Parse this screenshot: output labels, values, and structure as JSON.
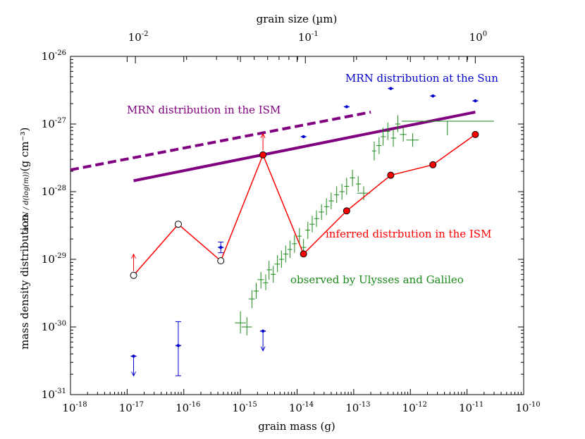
{
  "chart_data": {
    "type": "scatter",
    "xlabel": "grain mass (g)",
    "top_xlabel": "grain size (µm)",
    "ylabel": "mass density distribution",
    "ylabel_fraction": "m dN / d(log(m))",
    "ylabel_units": "(g cm⁻³)",
    "x_scale": "log",
    "y_scale": "log",
    "xlim": [
      1e-18,
      1e-10
    ],
    "ylim": [
      1e-31,
      1e-26
    ],
    "x_ticks": [
      {
        "value": 1e-18,
        "base": "10",
        "exp": "-18"
      },
      {
        "value": 1e-17,
        "base": "10",
        "exp": "-17"
      },
      {
        "value": 1e-16,
        "base": "10",
        "exp": "-16"
      },
      {
        "value": 1e-15,
        "base": "10",
        "exp": "-15"
      },
      {
        "value": 1e-14,
        "base": "10",
        "exp": "-14"
      },
      {
        "value": 1e-13,
        "base": "10",
        "exp": "-13"
      },
      {
        "value": 1e-12,
        "base": "10",
        "exp": "-12"
      },
      {
        "value": 1e-11,
        "base": "10",
        "exp": "-11"
      },
      {
        "value": 1e-10,
        "base": "10",
        "exp": "-10"
      }
    ],
    "y_ticks": [
      {
        "value": 1e-31,
        "base": "10",
        "exp": "-31"
      },
      {
        "value": 1e-30,
        "base": "10",
        "exp": "-30"
      },
      {
        "value": 1e-29,
        "base": "10",
        "exp": "-29"
      },
      {
        "value": 1e-28,
        "base": "10",
        "exp": "-28"
      },
      {
        "value": 1e-27,
        "base": "10",
        "exp": "-27"
      },
      {
        "value": 1e-26,
        "base": "10",
        "exp": "-26"
      }
    ],
    "top_ticks": [
      {
        "size_um": 0.01,
        "base": "10",
        "exp": "-2"
      },
      {
        "size_um": 0.1,
        "base": "10",
        "exp": "-1"
      },
      {
        "size_um": 1.0,
        "base": "10",
        "exp": "0"
      }
    ],
    "top_axis_mass_per_um3": 1.4e-11,
    "series": [
      {
        "name": "MRN distribution in the ISM",
        "label": "MRN distribution in the ISM",
        "color": "#800080",
        "style": "dashed",
        "points": [
          [
            1e-18,
            2.1e-28
          ],
          [
            2e-13,
            1.5e-27
          ]
        ]
      },
      {
        "name": "MRN distribution (solid)",
        "color": "#800080",
        "style": "solid",
        "points": [
          [
            1.3e-17,
            1.45e-28
          ],
          [
            1.4e-11,
            1.5e-27
          ]
        ]
      },
      {
        "name": "inferred distrbution in the ISM",
        "label": "inferred distrbution in the ISM",
        "color": "#ff0000",
        "style": "line-markers",
        "points": [
          [
            1.3e-17,
            5.8e-30,
            "open"
          ],
          [
            8e-17,
            3.3e-29,
            "open"
          ],
          [
            4.5e-16,
            9.5e-30,
            "open"
          ],
          [
            2.5e-15,
            3.5e-28,
            "filled"
          ],
          [
            1.3e-14,
            1.2e-29,
            "filled"
          ],
          [
            7.5e-14,
            5.2e-29,
            "filled"
          ],
          [
            4.5e-13,
            1.75e-28,
            "filled"
          ],
          [
            2.5e-12,
            2.5e-28,
            "filled"
          ],
          [
            1.4e-11,
            7e-28,
            "filled"
          ]
        ],
        "upper_arrows": [
          [
            1.3e-17,
            5.8e-30
          ],
          [
            2.5e-15,
            3.5e-28
          ]
        ]
      },
      {
        "name": "MRN distribution at the Sun",
        "label": "MRN distribution at the Sun",
        "color": "#0000cd",
        "style": "points-errorbars",
        "points": [
          {
            "x": 1.3e-17,
            "y": 3.7e-31,
            "limit": "upper"
          },
          {
            "x": 8e-17,
            "y": 5.3e-31,
            "err_low": 1.9e-31,
            "err_high": 1.2e-30
          },
          {
            "x": 4.5e-16,
            "y": 1.5e-29,
            "err_low": 1.25e-29,
            "err_high": 1.8e-29
          },
          {
            "x": 2.5e-15,
            "y": 8.7e-31,
            "limit": "upper"
          },
          {
            "x": 1.3e-14,
            "y": 6.5e-28
          },
          {
            "x": 7.5e-14,
            "y": 1.8e-27
          },
          {
            "x": 4.5e-13,
            "y": 3.35e-27
          },
          {
            "x": 2.5e-12,
            "y": 2.6e-27
          },
          {
            "x": 1.4e-11,
            "y": 2.2e-27
          }
        ]
      },
      {
        "name": "observed by Ulysses and Galileo",
        "label": "observed by Ulysses and Galileo",
        "color": "#1a8a1a",
        "style": "crosses",
        "points": [
          [
            1e-15,
            1.15e-30,
            8e-16,
            1.25e-15,
            8e-31,
            1.7e-30
          ],
          [
            1.3e-15,
            1e-30,
            1.05e-15,
            1.6e-15,
            7.5e-31,
            1.4e-30
          ],
          [
            1.6e-15,
            2.6e-30,
            1.4e-15,
            1.8e-15,
            1.9e-30,
            3.5e-30
          ],
          [
            1.9e-15,
            3.4e-30,
            1.7e-15,
            2.1e-15,
            2.6e-30,
            4.5e-30
          ],
          [
            2.3e-15,
            5e-30,
            2e-15,
            2.6e-15,
            3.7e-30,
            6.5e-30
          ],
          [
            2.8e-15,
            4.5e-30,
            2.5e-15,
            3.1e-15,
            3.5e-30,
            6e-30
          ],
          [
            3.2e-15,
            7e-30,
            2.9e-15,
            3.6e-15,
            5e-30,
            9.5e-30
          ],
          [
            3.8e-15,
            6e-30,
            3.4e-15,
            4.2e-15,
            4.5e-30,
            8e-30
          ],
          [
            4.5e-15,
            8.5e-30,
            4e-15,
            5e-15,
            6.5e-30,
            1.15e-29
          ],
          [
            5.3e-15,
            1e-29,
            4.8e-15,
            5.9e-15,
            7.5e-30,
            1.35e-29
          ],
          [
            6.3e-15,
            1.2e-29,
            5.7e-15,
            7e-15,
            9e-30,
            1.6e-29
          ],
          [
            7.5e-15,
            1.4e-29,
            6.8e-15,
            8.2e-15,
            1.05e-29,
            1.9e-29
          ],
          [
            9e-15,
            1.7e-29,
            8.1e-15,
            1e-14,
            1.25e-29,
            2.3e-29
          ],
          [
            1.1e-14,
            2.2e-29,
            1e-14,
            1.2e-14,
            1.65e-29,
            2.9e-29
          ],
          [
            1.3e-14,
            1.5e-29,
            1.15e-14,
            1.45e-14,
            1.1e-29,
            2e-29
          ],
          [
            1.55e-14,
            2.7e-29,
            1.4e-14,
            1.7e-14,
            2e-29,
            3.6e-29
          ],
          [
            1.85e-14,
            3.3e-29,
            1.65e-14,
            2.05e-14,
            2.5e-29,
            4.4e-29
          ],
          [
            2.2e-14,
            4e-29,
            2e-14,
            2.45e-14,
            3e-29,
            5.3e-29
          ],
          [
            2.7e-14,
            5e-29,
            2.4e-14,
            3e-14,
            3.8e-29,
            6.5e-29
          ],
          [
            3.3e-14,
            6e-29,
            3e-14,
            3.7e-14,
            4.5e-29,
            8e-29
          ],
          [
            4e-14,
            7.3e-29,
            3.6e-14,
            4.5e-14,
            5.5e-29,
            9.7e-29
          ],
          [
            5e-14,
            9e-29,
            4.5e-14,
            5.5e-14,
            6.8e-29,
            1.2e-28
          ],
          [
            6.2e-14,
            1e-28,
            5.6e-14,
            6.9e-14,
            7.6e-29,
            1.3e-28
          ],
          [
            7.5e-14,
            1.2e-28,
            6.8e-14,
            8.3e-14,
            9e-29,
            1.6e-28
          ],
          [
            9.5e-14,
            1.6e-28,
            8.5e-14,
            1.05e-13,
            1.2e-28,
            2.1e-28
          ],
          [
            1.2e-13,
            1.3e-28,
            1.1e-13,
            1.35e-13,
            1e-28,
            1.7e-28
          ],
          [
            1.5e-13,
            9.5e-29,
            1.15e-13,
            1.95e-13,
            7.5e-29,
            1.2e-28
          ],
          [
            2.3e-13,
            4e-28,
            2.1e-13,
            2.5e-13,
            2.9e-28,
            5.5e-28
          ],
          [
            2.8e-13,
            4.8e-28,
            2.5e-13,
            3.1e-13,
            3.6e-28,
            6.4e-28
          ],
          [
            3.3e-13,
            6.5e-28,
            3e-13,
            3.7e-13,
            4.8e-28,
            8.8e-28
          ],
          [
            4e-13,
            7.8e-28,
            3.6e-13,
            4.4e-13,
            5.8e-28,
            1.05e-27
          ],
          [
            5e-13,
            6.2e-28,
            4.5e-13,
            5.6e-13,
            4.6e-28,
            8.4e-28
          ],
          [
            6e-13,
            1e-27,
            5.4e-13,
            6.7e-13,
            7.6e-28,
            1.35e-27
          ],
          [
            7.5e-13,
            7e-28,
            6.5e-13,
            8.6e-13,
            5.5e-28,
            9e-28
          ],
          [
            1.1e-12,
            5.8e-28,
            8.5e-13,
            1.4e-12,
            4.6e-28,
            7.3e-28
          ],
          [
            4.5e-12,
            1.1e-27,
            7e-13,
            3e-11,
            6.8e-28,
            1.1e-27
          ]
        ]
      }
    ]
  }
}
